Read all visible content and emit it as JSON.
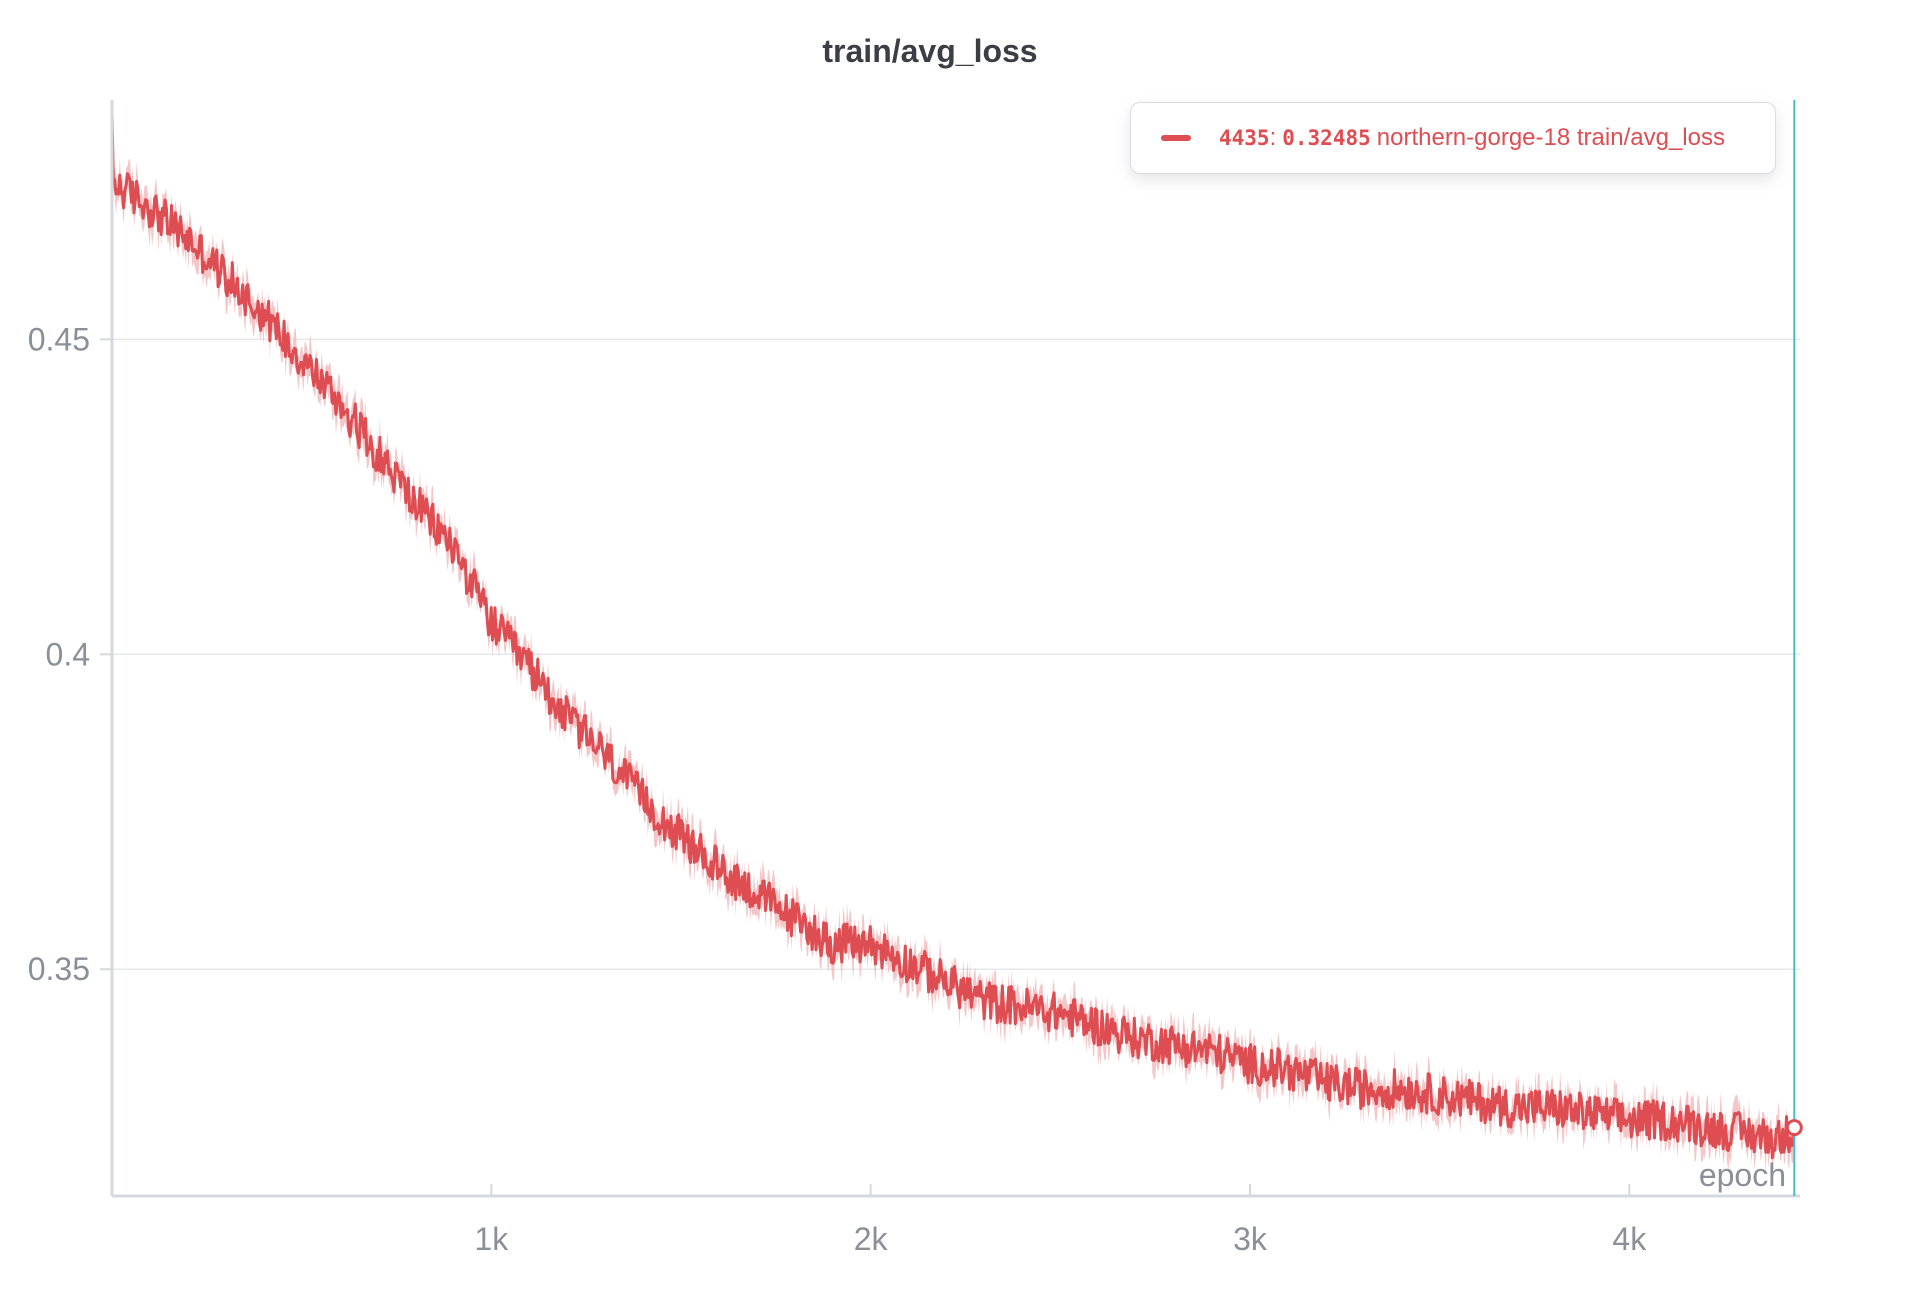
{
  "chart_data": {
    "type": "line",
    "title": "train/avg_loss",
    "xlabel": "epoch",
    "ylabel": "",
    "xlim": [
      0,
      4450
    ],
    "ylim": [
      0.314,
      0.488
    ],
    "x_ticks": [
      {
        "value": 1000,
        "label": "1k"
      },
      {
        "value": 2000,
        "label": "2k"
      },
      {
        "value": 3000,
        "label": "3k"
      },
      {
        "value": 4000,
        "label": "4k"
      }
    ],
    "y_ticks": [
      {
        "value": 0.35,
        "label": "0.35"
      },
      {
        "value": 0.4,
        "label": "0.4"
      },
      {
        "value": 0.45,
        "label": "0.45"
      }
    ],
    "grid": "horizontal",
    "legend_position": "top-right",
    "series": [
      {
        "name": "northern-gorge-18 train/avg_loss",
        "color": "#de4d52",
        "band_color": "#f0b3b6",
        "x": [
          0,
          100,
          200,
          300,
          400,
          500,
          600,
          700,
          800,
          900,
          1000,
          1100,
          1200,
          1300,
          1400,
          1500,
          1600,
          1700,
          1800,
          1900,
          2000,
          2100,
          2200,
          2300,
          2400,
          2500,
          2600,
          2700,
          2800,
          2900,
          3000,
          3100,
          3200,
          3300,
          3400,
          3500,
          3600,
          3700,
          3800,
          3900,
          4000,
          4100,
          4200,
          4300,
          4400,
          4435
        ],
        "y": [
          0.475,
          0.471,
          0.466,
          0.46,
          0.454,
          0.447,
          0.44,
          0.432,
          0.424,
          0.417,
          0.405,
          0.398,
          0.39,
          0.384,
          0.377,
          0.371,
          0.366,
          0.362,
          0.358,
          0.354,
          0.354,
          0.351,
          0.348,
          0.345,
          0.344,
          0.343,
          0.341,
          0.339,
          0.338,
          0.337,
          0.335,
          0.334,
          0.332,
          0.331,
          0.331,
          0.33,
          0.329,
          0.328,
          0.328,
          0.327,
          0.326,
          0.326,
          0.325,
          0.324,
          0.323,
          0.32485
        ],
        "annotations": [
          {
            "x": 0,
            "y": 0.48
          },
          {
            "x": 50,
            "y": 0.474
          },
          {
            "x": 1700,
            "y": 0.354
          },
          {
            "x": 1800,
            "y": 0.369
          },
          {
            "x": 3050,
            "y": 0.345
          }
        ]
      }
    ],
    "hover": {
      "step": "4435",
      "value": "0.32485",
      "series_label": "northern-gorge-18 train/avg_loss"
    }
  }
}
